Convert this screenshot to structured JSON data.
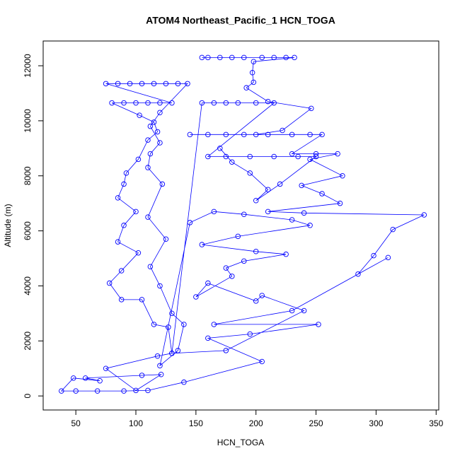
{
  "chart_data": {
    "type": "line",
    "title": "ATOM4 Northeast_Pacific_1 HCN_TOGA",
    "xlabel": "HCN_TOGA",
    "ylabel": "Altitude (m)",
    "color": "#0000ff",
    "marker": "circle",
    "x": [
      155,
      160,
      170,
      180,
      190,
      205,
      215,
      225,
      232,
      198,
      197,
      198,
      192,
      210,
      246,
      222,
      200,
      145,
      160,
      175,
      190,
      210,
      230,
      245,
      255,
      230,
      250,
      268,
      245,
      272,
      238,
      255,
      270,
      210,
      240,
      340,
      314,
      298,
      285,
      310,
      230,
      165,
      252,
      195,
      160,
      205,
      140,
      110,
      90,
      68,
      50,
      38,
      48,
      70,
      58,
      105,
      121,
      100,
      75,
      118,
      130,
      127,
      115,
      105,
      88,
      78,
      88,
      102,
      85,
      90,
      100,
      85,
      90,
      92,
      102,
      110,
      118,
      115,
      103,
      80,
      90,
      100,
      110,
      120,
      130,
      75,
      85,
      95,
      105,
      115,
      125,
      135,
      143,
      120,
      112,
      120,
      112,
      110,
      122,
      110,
      125,
      112,
      120,
      130,
      140,
      135,
      120,
      145,
      165,
      190,
      230,
      245,
      185,
      155,
      200,
      225,
      190,
      175,
      180,
      150,
      160,
      200,
      205,
      240,
      175,
      130,
      155,
      165,
      175,
      185,
      200,
      215,
      160,
      175,
      195,
      215,
      235,
      250,
      220,
      200,
      210,
      195,
      180,
      170
    ],
    "values": [
      12300,
      12300,
      12300,
      12300,
      12300,
      12300,
      12300,
      12300,
      12300,
      12150,
      11750,
      11400,
      11200,
      10700,
      10450,
      9650,
      9500,
      9500,
      9500,
      9500,
      9500,
      9500,
      9500,
      9500,
      9500,
      8800,
      8800,
      8800,
      8600,
      8000,
      7650,
      7350,
      7000,
      6700,
      6650,
      6580,
      6050,
      5100,
      4430,
      5030,
      3100,
      2600,
      2600,
      2250,
      2100,
      1250,
      500,
      200,
      180,
      180,
      180,
      180,
      650,
      550,
      650,
      750,
      780,
      200,
      1000,
      1450,
      1550,
      2500,
      2600,
      3500,
      3500,
      4100,
      4550,
      5200,
      5600,
      6200,
      6700,
      7200,
      7700,
      8100,
      8600,
      9300,
      9600,
      9950,
      10200,
      10650,
      10650,
      10650,
      10650,
      10650,
      10650,
      11350,
      11350,
      11350,
      11350,
      11350,
      11350,
      11350,
      11350,
      10300,
      9800,
      9200,
      8800,
      8300,
      7700,
      6500,
      5700,
      4700,
      4000,
      3000,
      2600,
      1650,
      1100,
      6300,
      6700,
      6600,
      6400,
      6200,
      5800,
      5500,
      5250,
      5150,
      4900,
      4650,
      4350,
      3600,
      4100,
      3450,
      3650,
      3100,
      1650,
      1550,
      10650,
      10650,
      10650,
      10650,
      10650,
      10650,
      8700,
      8700,
      8700,
      8700,
      8700,
      8700,
      7700,
      7100,
      7500,
      8100,
      8500,
      9000
    ],
    "xlim": [
      22.8,
      352.2
    ],
    "ylim": [
      -510,
      12900
    ],
    "xticks": [
      50,
      100,
      150,
      200,
      250,
      300,
      350
    ],
    "yticks": [
      0,
      2000,
      4000,
      6000,
      8000,
      10000,
      12000
    ]
  }
}
